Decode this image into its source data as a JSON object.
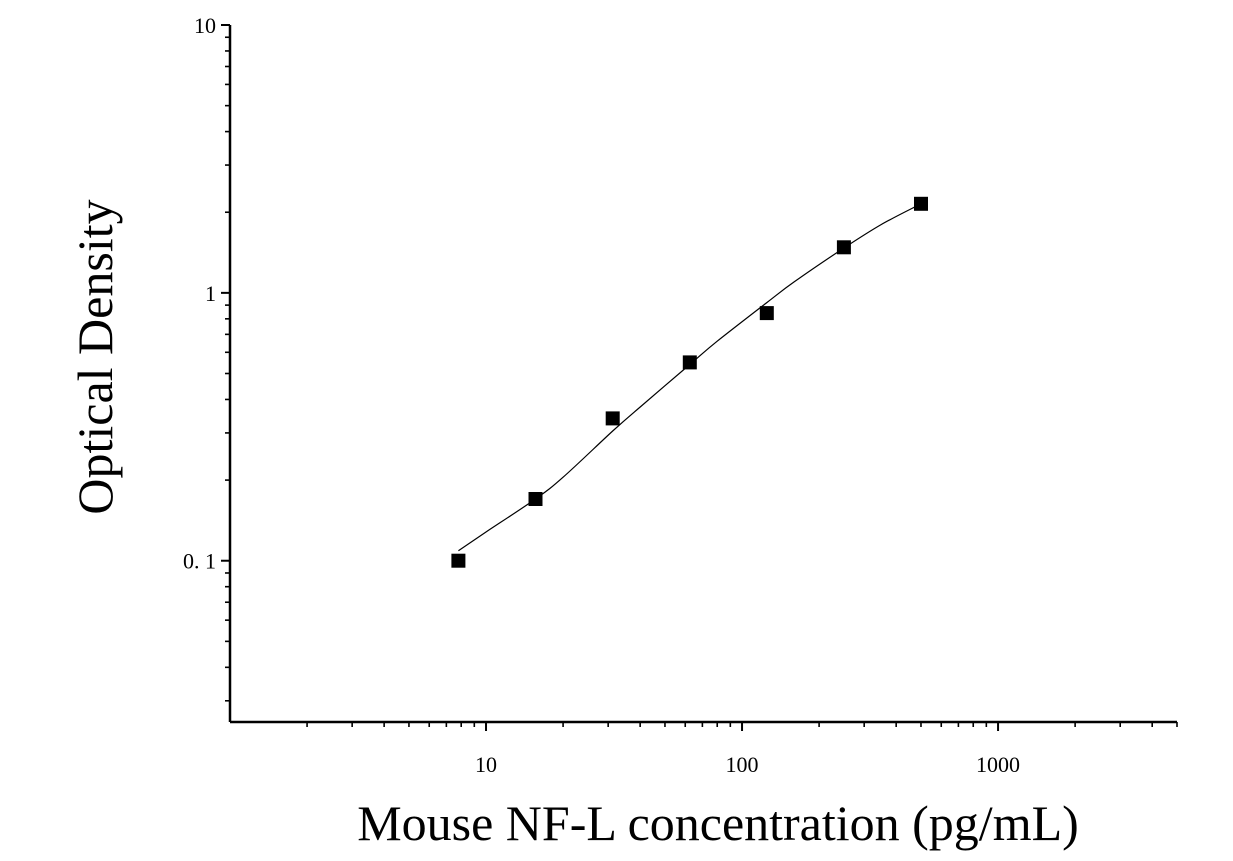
{
  "chart_data": {
    "type": "scatter",
    "title": "",
    "xlabel": "Mouse NF-L concentration (pg/mL)",
    "ylabel": "Optical Density",
    "x_scale": "log",
    "y_scale": "log",
    "xlim": [
      1,
      5000
    ],
    "ylim": [
      0.025,
      10
    ],
    "x_ticks": [
      {
        "value": 10,
        "label": "10"
      },
      {
        "value": 100,
        "label": "100"
      },
      {
        "value": 1000,
        "label": "1000"
      }
    ],
    "y_ticks": [
      {
        "value": 0.1,
        "label": "0. 1"
      },
      {
        "value": 1,
        "label": "1"
      },
      {
        "value": 10,
        "label": "10"
      }
    ],
    "grid": false,
    "legend": "none",
    "series": [
      {
        "marker": "square",
        "color": "#000000",
        "x": [
          7.8,
          15.6,
          31.25,
          62.5,
          125,
          250,
          500
        ],
        "y": [
          0.1,
          0.17,
          0.34,
          0.55,
          0.84,
          1.48,
          2.15
        ]
      }
    ],
    "fit_curve": {
      "color": "#000000",
      "x": [
        7.8,
        10,
        15.6,
        20,
        31.25,
        40,
        62.5,
        80,
        125,
        160,
        250,
        350,
        500
      ],
      "y": [
        0.109,
        0.128,
        0.17,
        0.205,
        0.305,
        0.375,
        0.54,
        0.66,
        0.92,
        1.1,
        1.47,
        1.8,
        2.15
      ]
    }
  }
}
